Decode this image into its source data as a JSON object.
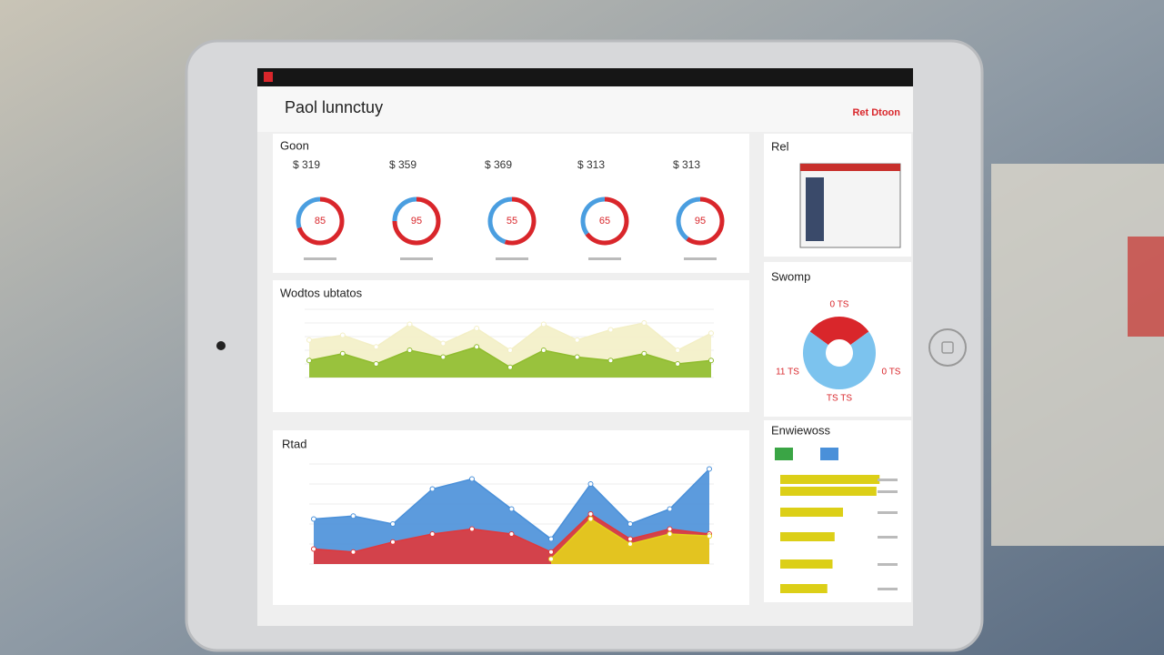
{
  "header": {
    "title": "Paol lunnctuy",
    "action": "Ret Dtoon"
  },
  "kpi_panel": {
    "title": "Goon",
    "items": [
      {
        "value": "$ 319",
        "center": "85",
        "percent": 70
      },
      {
        "value": "$ 359",
        "center": "95",
        "percent": 75
      },
      {
        "value": "$ 369",
        "center": "55",
        "percent": 55
      },
      {
        "value": "$ 313",
        "center": "65",
        "percent": 65
      },
      {
        "value": "$ 313",
        "center": "95",
        "percent": 60
      }
    ]
  },
  "wave_chart": {
    "title": "Wodtos ubtatos",
    "ylim": [
      0,
      100
    ],
    "series": [
      {
        "color": "#f3efc6",
        "values": [
          55,
          62,
          45,
          78,
          50,
          72,
          40,
          78,
          55,
          70,
          80,
          40,
          65
        ]
      },
      {
        "color": "#8fbc2e",
        "values": [
          25,
          35,
          20,
          40,
          30,
          45,
          15,
          40,
          30,
          25,
          35,
          20,
          25
        ]
      }
    ]
  },
  "area_chart": {
    "title": "Rtad",
    "ylim": [
      0,
      100
    ],
    "series": [
      {
        "color": "#4a90d9",
        "values": [
          45,
          48,
          40,
          75,
          85,
          55,
          25,
          80,
          40,
          55,
          95
        ]
      },
      {
        "color": "#e0383b",
        "values": [
          15,
          12,
          22,
          30,
          35,
          30,
          12,
          50,
          25,
          35,
          30
        ]
      },
      {
        "color": "#e4d31c",
        "values": [
          null,
          null,
          null,
          null,
          null,
          null,
          5,
          45,
          20,
          30,
          28
        ]
      }
    ]
  },
  "product_card": {
    "title": "Rel"
  },
  "pie_panel": {
    "title": "Swomp",
    "labels": [
      "0 TS",
      "11 TS",
      "0 TS",
      "TS TS"
    ],
    "slices": [
      {
        "value": 30,
        "color": "#d9262b"
      },
      {
        "value": 70,
        "color": "#7cc3ee"
      }
    ]
  },
  "bar_panel": {
    "title": "Enwiewoss",
    "color": "#dccf17",
    "xlim": [
      0,
      100
    ],
    "values": [
      95,
      92,
      60,
      52,
      50,
      45
    ]
  }
}
